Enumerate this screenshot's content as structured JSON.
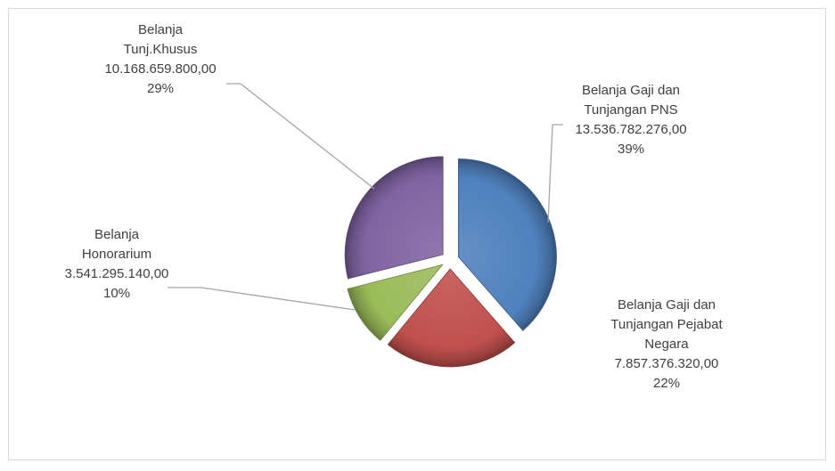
{
  "chart_data": {
    "type": "pie",
    "exploded": true,
    "style": "3d-bevel",
    "slices": [
      {
        "label_lines": [
          "Belanja Gaji dan",
          "Tunjangan PNS"
        ],
        "value": 13536782276.0,
        "value_text": "13.536.782.276,00",
        "percent_text": "39%",
        "color": "#4f81bd"
      },
      {
        "label_lines": [
          "Belanja Gaji dan",
          "Tunjangan Pejabat",
          "Negara"
        ],
        "value": 7857376320.0,
        "value_text": "7.857.376.320,00",
        "percent_text": "22%",
        "color": "#c0504d"
      },
      {
        "label_lines": [
          "Belanja",
          "Honorarium"
        ],
        "value": 3541295140.0,
        "value_text": "3.541.295.140,00",
        "percent_text": "10%",
        "color": "#9bbb59"
      },
      {
        "label_lines": [
          "Belanja",
          "Tunj.Khusus"
        ],
        "value": 10168659800.0,
        "value_text": "10.168.659.800,00",
        "percent_text": "29%",
        "color": "#8064a2"
      }
    ],
    "legend": "none"
  }
}
